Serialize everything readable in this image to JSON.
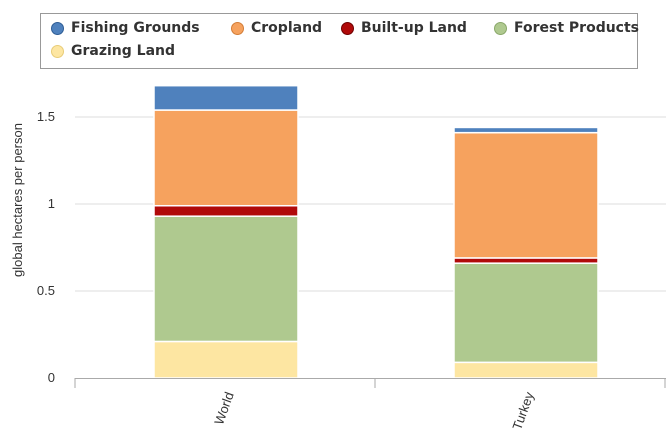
{
  "chart_data": {
    "type": "bar",
    "stacked": true,
    "title": "",
    "xlabel": "",
    "ylabel": "global hectares per person",
    "categories": [
      "World",
      "Turkey"
    ],
    "ylim": [
      0,
      1.7
    ],
    "yticks": [
      0,
      0.5,
      1,
      1.5
    ],
    "ytick_labels": [
      "0",
      "0.5",
      "1",
      "1.5"
    ],
    "grid": true,
    "legend_position": "top",
    "series": [
      {
        "name": "Grazing Land",
        "color": "#fde6a2",
        "values": [
          0.21,
          0.09
        ]
      },
      {
        "name": "Forest Products",
        "color": "#afc98f",
        "values": [
          0.72,
          0.57
        ]
      },
      {
        "name": "Built-up Land",
        "color": "#b00a0a",
        "values": [
          0.06,
          0.03
        ]
      },
      {
        "name": "Cropland",
        "color": "#f6a25e",
        "values": [
          0.55,
          0.72
        ]
      },
      {
        "name": "Fishing Grounds",
        "color": "#4f81bd",
        "values": [
          0.14,
          0.03
        ]
      }
    ],
    "legend_order": [
      "Fishing Grounds",
      "Cropland",
      "Built-up Land",
      "Forest Products",
      "Grazing Land"
    ]
  }
}
